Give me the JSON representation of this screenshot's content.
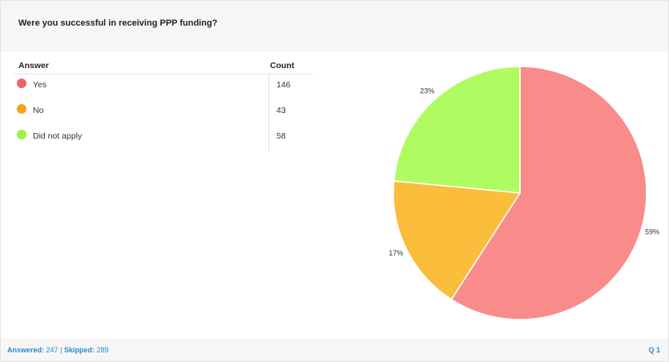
{
  "question": "Were you successful in receiving PPP funding?",
  "table": {
    "header_answer": "Answer",
    "header_count": "Count"
  },
  "footer": {
    "answered_label": "Answered:",
    "answered_value": "247",
    "separator": "|",
    "skipped_label": "Skipped:",
    "skipped_value": "289",
    "question_number": "Q 1"
  },
  "chart_data": {
    "type": "pie",
    "categories": [
      "Yes",
      "No",
      "Did not apply"
    ],
    "values": [
      146,
      43,
      58
    ],
    "percent_labels": [
      "59%",
      "17%",
      "23%"
    ],
    "colors": [
      "#f98b8b",
      "#fabd3c",
      "#b0fb62"
    ],
    "dot_colors": [
      "#f0626a",
      "#f5a51b",
      "#9ef04a"
    ]
  }
}
